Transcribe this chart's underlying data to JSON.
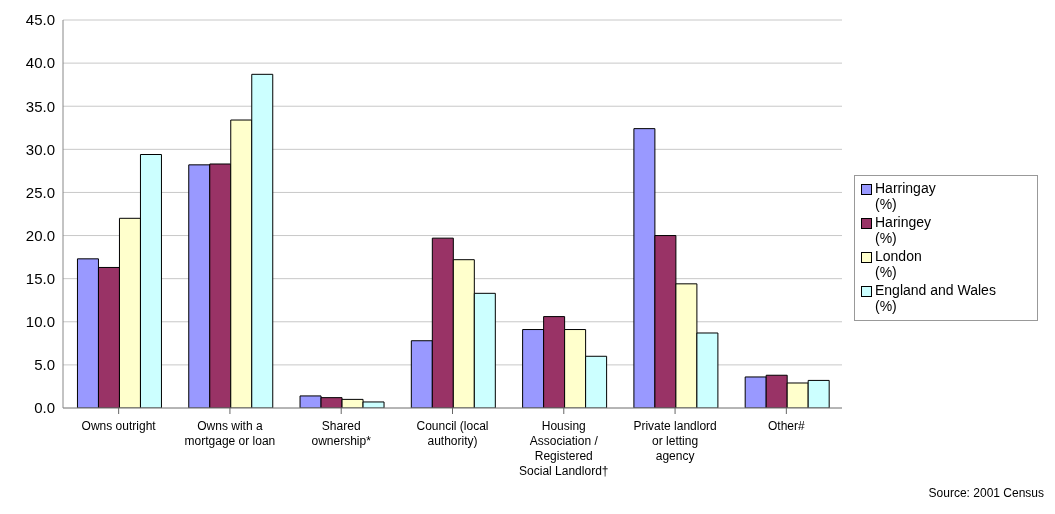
{
  "chart_data": {
    "type": "bar",
    "categories": [
      "Owns outright",
      "Owns with a mortgage or loan",
      "Shared ownership*",
      "Council (local authority)",
      "Housing Association / Registered Social Landlord†",
      "Private landlord or letting agency",
      "Other#"
    ],
    "series": [
      {
        "name": "Harringay (%)",
        "color": "#9999ff",
        "values": [
          17.3,
          28.2,
          1.4,
          7.8,
          9.1,
          32.4,
          3.6
        ]
      },
      {
        "name": "Haringey (%)",
        "color": "#993366",
        "values": [
          16.3,
          28.3,
          1.2,
          19.7,
          10.6,
          20.0,
          3.8
        ]
      },
      {
        "name": "London (%)",
        "color": "#ffffcc",
        "values": [
          22.0,
          33.4,
          1.0,
          17.2,
          9.1,
          14.4,
          2.9
        ]
      },
      {
        "name": "England and Wales (%)",
        "color": "#ccffff",
        "values": [
          29.4,
          38.7,
          0.7,
          13.3,
          6.0,
          8.7,
          3.2
        ]
      }
    ],
    "ylim": [
      0,
      45
    ],
    "yticks": [
      {
        "value": 0,
        "label": "0.0"
      },
      {
        "value": 5,
        "label": "5.0"
      },
      {
        "value": 10,
        "label": "10.0"
      },
      {
        "value": 15,
        "label": "15.0"
      },
      {
        "value": 20,
        "label": "20.0"
      },
      {
        "value": 25,
        "label": "25.0"
      },
      {
        "value": 30,
        "label": "30.0"
      },
      {
        "value": 35,
        "label": "35.0"
      },
      {
        "value": 40,
        "label": "40.0"
      },
      {
        "value": 45,
        "label": "45.0"
      }
    ],
    "grid": "y",
    "legend": "right",
    "annotations": [
      "Source: 2001 Census"
    ]
  }
}
